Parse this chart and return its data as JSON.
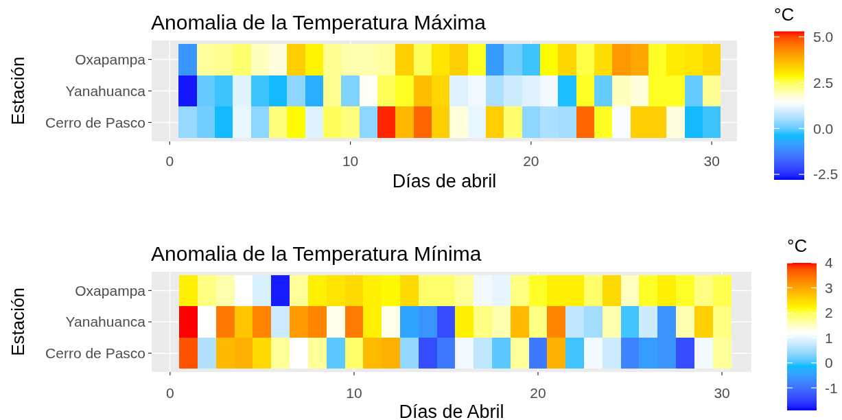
{
  "chart_data": [
    {
      "type": "heatmap",
      "title": "Anomalia de la Temperatura Máxima",
      "xlabel": "Días de abril",
      "ylabel": "Estación",
      "clabel": "°C",
      "x": [
        1,
        2,
        3,
        4,
        5,
        6,
        7,
        8,
        9,
        10,
        11,
        12,
        13,
        14,
        15,
        16,
        17,
        18,
        19,
        20,
        21,
        22,
        23,
        24,
        25,
        26,
        27,
        28,
        29,
        30
      ],
      "xlim": [
        -1,
        31.4
      ],
      "xticks": [
        0,
        10,
        20,
        30
      ],
      "y_categories": [
        "Oxapampa",
        "Yanahuanca",
        "Cerro de Pasco"
      ],
      "cells": [
        [
          -1.0,
          2.1,
          2.2,
          2.4,
          1.9,
          1.7,
          3.4,
          2.9,
          2.2,
          2.0,
          2.0,
          2.1,
          3.4,
          2.5,
          3.1,
          3.4,
          2.7,
          -0.9,
          0.1,
          -0.2,
          2.8,
          3.3,
          2.6,
          3.2,
          4.1,
          3.9,
          2.7,
          3.0,
          3.1,
          3.3
        ],
        [
          -2.7,
          0.0,
          -0.2,
          1.1,
          -0.2,
          -0.4,
          0.3,
          -0.6,
          2.2,
          0.2,
          1.5,
          2.5,
          2.7,
          3.6,
          3.3,
          1.1,
          1.3,
          0.6,
          0.9,
          1.1,
          1.3,
          -0.3,
          2.7,
          0.0,
          1.9,
          1.7,
          2.7,
          2.7,
          0.0,
          2.2
        ],
        [
          0.4,
          0.1,
          -0.4,
          1.2,
          0.3,
          2.3,
          2.8,
          1.1,
          2.5,
          2.3,
          0.3,
          5.2,
          3.7,
          4.7,
          3.4,
          1.7,
          1.2,
          3.4,
          2.4,
          0.3,
          0.6,
          0.5,
          4.7,
          2.7,
          1.4,
          3.4,
          3.4,
          1.7,
          -0.4,
          -0.2
        ]
      ],
      "clim": [
        -2.8,
        5.3
      ],
      "cticks": [
        -2.5,
        {
          "value": 0,
          "label": "0.0"
        },
        2.5,
        {
          "value": 5,
          "label": "5.0"
        }
      ],
      "grid": true
    },
    {
      "type": "heatmap",
      "title": "Anomalia de la Temperatura Mínima",
      "xlabel": "Días de Abril",
      "ylabel": "Estación",
      "clabel": "°C",
      "x": [
        1,
        2,
        3,
        4,
        5,
        6,
        7,
        8,
        9,
        10,
        11,
        12,
        13,
        14,
        15,
        16,
        17,
        18,
        19,
        20,
        21,
        22,
        23,
        24,
        25,
        26,
        27,
        28,
        29,
        30
      ],
      "xlim": [
        -1,
        31.6
      ],
      "xticks": [
        0,
        10,
        20,
        30
      ],
      "y_categories": [
        "Oxapampa",
        "Yanahuanca",
        "Cerro de Pasco"
      ],
      "cells": [
        [
          2.3,
          1.8,
          1.6,
          1.2,
          0.9,
          -1.8,
          1.7,
          2.3,
          2.4,
          2.5,
          2.3,
          2.2,
          2.5,
          1.9,
          1.9,
          1.7,
          1.1,
          1.0,
          1.8,
          2.1,
          2.3,
          2.3,
          1.9,
          2.5,
          1.5,
          2.1,
          2.3,
          2.1,
          1.8,
          2.0
        ],
        [
          4.0,
          1.2,
          3.4,
          2.7,
          3.3,
          0.8,
          3.1,
          3.3,
          1.3,
          3.4,
          2.3,
          1.3,
          -0.4,
          -0.6,
          -1.4,
          2.3,
          1.8,
          1.6,
          2.8,
          1.8,
          3.3,
          0.7,
          0.5,
          1.6,
          0.0,
          0.8,
          -0.6,
          1.6,
          2.6,
          1.8
        ],
        [
          3.7,
          0.6,
          2.8,
          2.9,
          2.5,
          1.7,
          1.2,
          1.7,
          0.1,
          1.9,
          2.8,
          2.9,
          0.4,
          -1.4,
          -0.9,
          1.1,
          0.7,
          0.1,
          1.7,
          -0.9,
          2.9,
          0.0,
          1.1,
          0.8,
          -0.8,
          -0.5,
          -0.6,
          -1.4,
          1.1,
          1.7
        ]
      ],
      "clim": [
        -1.9,
        4.0
      ],
      "cticks": [
        -1,
        0,
        1,
        2,
        3,
        4
      ],
      "grid": true
    }
  ]
}
